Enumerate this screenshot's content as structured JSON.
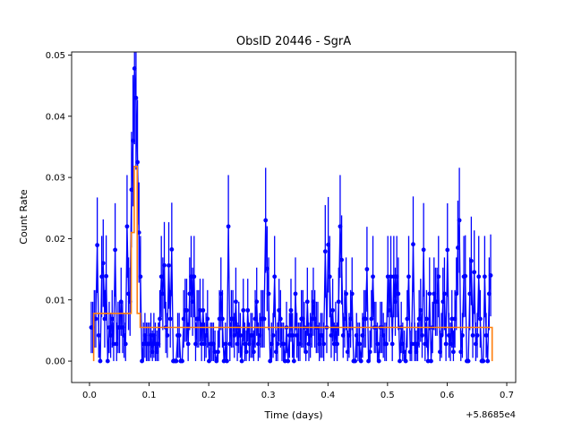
{
  "chart_data": {
    "type": "line",
    "title": "ObsID 20446 - SgrA",
    "xlabel": "Time (days)",
    "ylabel": "Count Rate",
    "x_offset_label": "+5.8685e4",
    "xlim": [
      -0.03,
      0.715
    ],
    "ylim": [
      -0.0035,
      0.0505
    ],
    "x_ticks": [
      0.0,
      0.1,
      0.2,
      0.3,
      0.4,
      0.5,
      0.6,
      0.7
    ],
    "x_tick_labels": [
      "0.0",
      "0.1",
      "0.2",
      "0.3",
      "0.4",
      "0.5",
      "0.6",
      "0.7"
    ],
    "y_ticks": [
      0.0,
      0.01,
      0.02,
      0.03,
      0.04,
      0.05
    ],
    "y_tick_labels": [
      "0.00",
      "0.01",
      "0.02",
      "0.03",
      "0.04",
      "0.05"
    ],
    "grid": false,
    "colors": {
      "light_curve": "#0000ff",
      "blocks": "#ff7f0e"
    },
    "series": [
      {
        "type": "errorbar-line",
        "color": "#0000ff",
        "x_start": 0.003,
        "x_end": 0.675,
        "x_step": 0.0025,
        "peak_points": [
          [
            0.07,
            0.028
          ],
          [
            0.0725,
            0.036
          ],
          [
            0.075,
            0.0478
          ],
          [
            0.0775,
            0.043
          ],
          [
            0.08,
            0.0325
          ],
          [
            0.0825,
            0.021
          ]
        ],
        "notable_points": [
          [
            0.022,
            0.016
          ],
          [
            0.064,
            0.022
          ],
          [
            0.233,
            0.022
          ],
          [
            0.295,
            0.023
          ],
          [
            0.42,
            0.022
          ],
          [
            0.621,
            0.023
          ],
          [
            0.675,
            0.014
          ]
        ]
      },
      {
        "type": "step",
        "color": "#ff7f0e",
        "segments": [
          {
            "x0": 0.007,
            "x1": 0.07,
            "y": 0.0078
          },
          {
            "x0": 0.07,
            "x1": 0.075,
            "y": 0.021
          },
          {
            "x0": 0.075,
            "x1": 0.08,
            "y": 0.0318
          },
          {
            "x0": 0.08,
            "x1": 0.085,
            "y": 0.0078
          },
          {
            "x0": 0.085,
            "x1": 0.6755,
            "y": 0.0055
          }
        ],
        "start_y": 0.0,
        "end_y": 0.0
      }
    ]
  }
}
